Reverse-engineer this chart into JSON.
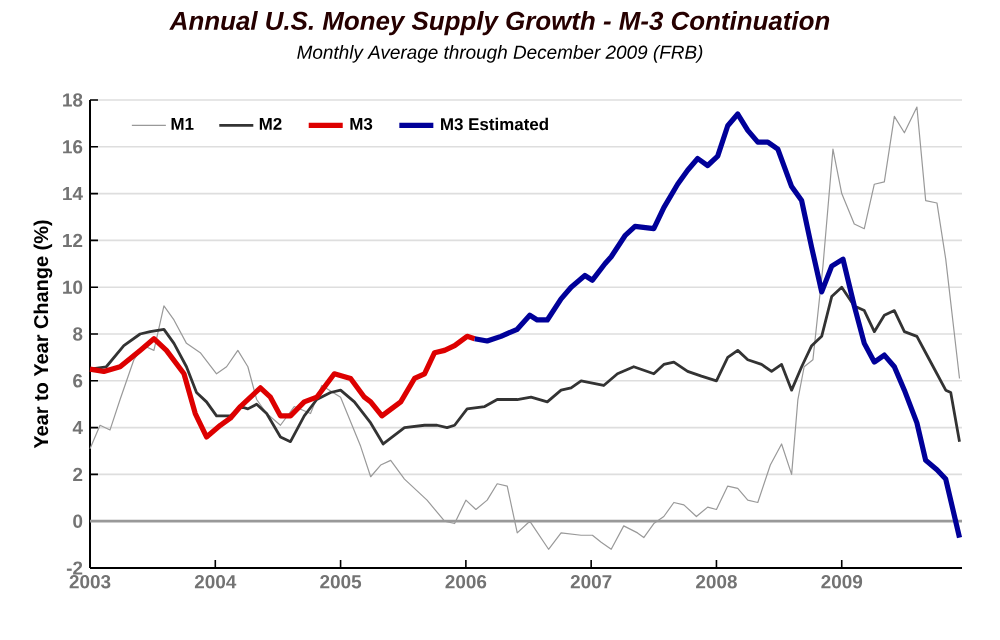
{
  "chart_data": {
    "type": "line",
    "title": "Annual U.S. Money Supply Growth - M-3 Continuation",
    "subtitle": "Monthly Average through December 2009 (FRB)",
    "ylabel": "Year to Year Change (%)",
    "xlim": [
      2003,
      2009.96
    ],
    "xticks": [
      2003,
      2004,
      2005,
      2006,
      2007,
      2008,
      2009
    ],
    "ylim": [
      -2,
      18
    ],
    "yticks": [
      -2,
      0,
      2,
      4,
      6,
      8,
      10,
      12,
      14,
      16,
      18
    ],
    "grid": "y",
    "legend": "top",
    "marker": "none",
    "line_style": "solid",
    "ref_lines": [
      {
        "axis": "y",
        "value": 0,
        "color": "#999999"
      }
    ],
    "series": [
      {
        "name": "M1",
        "color": "#999999",
        "x": [
          2003.0,
          2003.08,
          2003.16,
          2003.24,
          2003.35,
          2003.43,
          2003.51,
          2003.59,
          2003.67,
          2003.77,
          2003.88,
          2004.01,
          2004.09,
          2004.18,
          2004.26,
          2004.33,
          2004.41,
          2004.52,
          2004.63,
          2004.76,
          2004.85,
          2005.0,
          2005.16,
          2005.24,
          2005.32,
          2005.4,
          2005.51,
          2005.69,
          2005.83,
          2005.91,
          2006.0,
          2006.08,
          2006.17,
          2006.25,
          2006.33,
          2006.41,
          2006.51,
          2006.66,
          2006.76,
          2006.92,
          2007.01,
          2007.08,
          2007.16,
          2007.26,
          2007.37,
          2007.42,
          2007.5,
          2007.58,
          2007.66,
          2007.74,
          2007.84,
          2007.93,
          2008.0,
          2008.09,
          2008.17,
          2008.25,
          2008.33,
          2008.43,
          2008.52,
          2008.6,
          2008.65,
          2008.7,
          2008.77,
          2008.85,
          2008.93,
          2009.0,
          2009.1,
          2009.18,
          2009.26,
          2009.34,
          2009.42,
          2009.5,
          2009.6,
          2009.67,
          2009.76,
          2009.83,
          2009.94
        ],
        "values": [
          3.1,
          4.1,
          3.9,
          5.2,
          6.9,
          7.5,
          7.3,
          9.2,
          8.6,
          7.6,
          7.2,
          6.3,
          6.6,
          7.3,
          6.6,
          5.2,
          4.6,
          4.1,
          4.9,
          4.6,
          5.8,
          5.3,
          3.2,
          1.9,
          2.4,
          2.6,
          1.8,
          0.9,
          0,
          -0.1,
          0.9,
          0.5,
          0.9,
          1.6,
          1.5,
          -0.5,
          0,
          -1.2,
          -0.5,
          -0.6,
          -0.6,
          -0.9,
          -1.2,
          -0.2,
          -0.5,
          -0.7,
          -0.1,
          0.2,
          0.8,
          0.7,
          0.2,
          0.6,
          0.5,
          1.5,
          1.4,
          0.9,
          0.8,
          2.4,
          3.3,
          2.0,
          5.2,
          6.6,
          6.9,
          10.9,
          15.9,
          14.0,
          12.7,
          12.5,
          14.4,
          14.5,
          17.3,
          16.6,
          17.7,
          13.7,
          13.6,
          11.2,
          6.1
        ]
      },
      {
        "name": "M2",
        "color": "#333333",
        "x": [
          2003.0,
          2003.13,
          2003.27,
          2003.4,
          2003.48,
          2003.59,
          2003.67,
          2003.77,
          2003.85,
          2003.93,
          2004.01,
          2004.12,
          2004.2,
          2004.26,
          2004.33,
          2004.41,
          2004.52,
          2004.6,
          2004.71,
          2004.81,
          2004.92,
          2005.0,
          2005.11,
          2005.24,
          2005.34,
          2005.51,
          2005.67,
          2005.77,
          2005.85,
          2005.91,
          2006.01,
          2006.15,
          2006.25,
          2006.41,
          2006.52,
          2006.65,
          2006.76,
          2006.84,
          2006.92,
          2007.1,
          2007.21,
          2007.34,
          2007.5,
          2007.58,
          2007.66,
          2007.77,
          2007.88,
          2008.0,
          2008.09,
          2008.17,
          2008.25,
          2008.36,
          2008.44,
          2008.52,
          2008.6,
          2008.68,
          2008.76,
          2008.84,
          2008.92,
          2009.0,
          2009.1,
          2009.18,
          2009.26,
          2009.34,
          2009.42,
          2009.5,
          2009.6,
          2009.67,
          2009.76,
          2009.83,
          2009.87,
          2009.94
        ],
        "values": [
          6.5,
          6.6,
          7.5,
          8.0,
          8.1,
          8.2,
          7.6,
          6.6,
          5.5,
          5.1,
          4.5,
          4.5,
          4.9,
          4.8,
          5.0,
          4.6,
          3.6,
          3.4,
          4.5,
          5.2,
          5.5,
          5.6,
          5.1,
          4.2,
          3.3,
          4.0,
          4.1,
          4.1,
          4.0,
          4.1,
          4.8,
          4.9,
          5.2,
          5.2,
          5.3,
          5.1,
          5.6,
          5.7,
          6.0,
          5.8,
          6.3,
          6.6,
          6.3,
          6.7,
          6.8,
          6.4,
          6.2,
          6.0,
          7.0,
          7.3,
          6.9,
          6.7,
          6.4,
          6.7,
          5.6,
          6.6,
          7.5,
          7.9,
          9.6,
          10.0,
          9.2,
          9.0,
          8.1,
          8.8,
          9.0,
          8.1,
          7.9,
          7.2,
          6.3,
          5.6,
          5.5,
          3.4
        ]
      },
      {
        "name": "M3",
        "color": "#dd0000",
        "x": [
          2003.0,
          2003.11,
          2003.24,
          2003.4,
          2003.51,
          2003.61,
          2003.75,
          2003.84,
          2003.93,
          2004.04,
          2004.12,
          2004.2,
          2004.36,
          2004.44,
          2004.52,
          2004.6,
          2004.71,
          2004.81,
          2004.95,
          2005.08,
          2005.19,
          2005.24,
          2005.33,
          2005.48,
          2005.59,
          2005.67,
          2005.75,
          2005.83,
          2005.91,
          2006.01,
          2006.07
        ],
        "values": [
          6.5,
          6.4,
          6.6,
          7.3,
          7.8,
          7.3,
          6.3,
          4.6,
          3.6,
          4.1,
          4.4,
          4.9,
          5.7,
          5.3,
          4.5,
          4.5,
          5.1,
          5.3,
          6.3,
          6.1,
          5.3,
          5.1,
          4.5,
          5.1,
          6.1,
          6.3,
          7.2,
          7.3,
          7.5,
          7.9,
          7.8
        ]
      },
      {
        "name": "M3 Estimated",
        "color": "#000099",
        "x": [
          2006.07,
          2006.17,
          2006.28,
          2006.41,
          2006.51,
          2006.57,
          2006.65,
          2006.76,
          2006.84,
          2006.95,
          2007.01,
          2007.11,
          2007.16,
          2007.27,
          2007.35,
          2007.5,
          2007.58,
          2007.69,
          2007.77,
          2007.85,
          2007.93,
          2008.01,
          2008.09,
          2008.17,
          2008.25,
          2008.33,
          2008.41,
          2008.49,
          2008.6,
          2008.68,
          2008.76,
          2008.84,
          2008.92,
          2009.01,
          2009.1,
          2009.18,
          2009.26,
          2009.34,
          2009.42,
          2009.5,
          2009.6,
          2009.67,
          2009.76,
          2009.83,
          2009.94
        ],
        "values": [
          7.8,
          7.7,
          7.9,
          8.2,
          8.8,
          8.6,
          8.6,
          9.5,
          10.0,
          10.5,
          10.3,
          11.0,
          11.3,
          12.2,
          12.6,
          12.5,
          13.4,
          14.4,
          15.0,
          15.5,
          15.2,
          15.6,
          16.9,
          17.4,
          16.7,
          16.2,
          16.2,
          15.9,
          14.3,
          13.7,
          11.7,
          9.8,
          10.9,
          11.2,
          9.2,
          7.6,
          6.8,
          7.1,
          6.6,
          5.6,
          4.2,
          2.6,
          2.2,
          1.8,
          -0.7
        ]
      }
    ]
  }
}
